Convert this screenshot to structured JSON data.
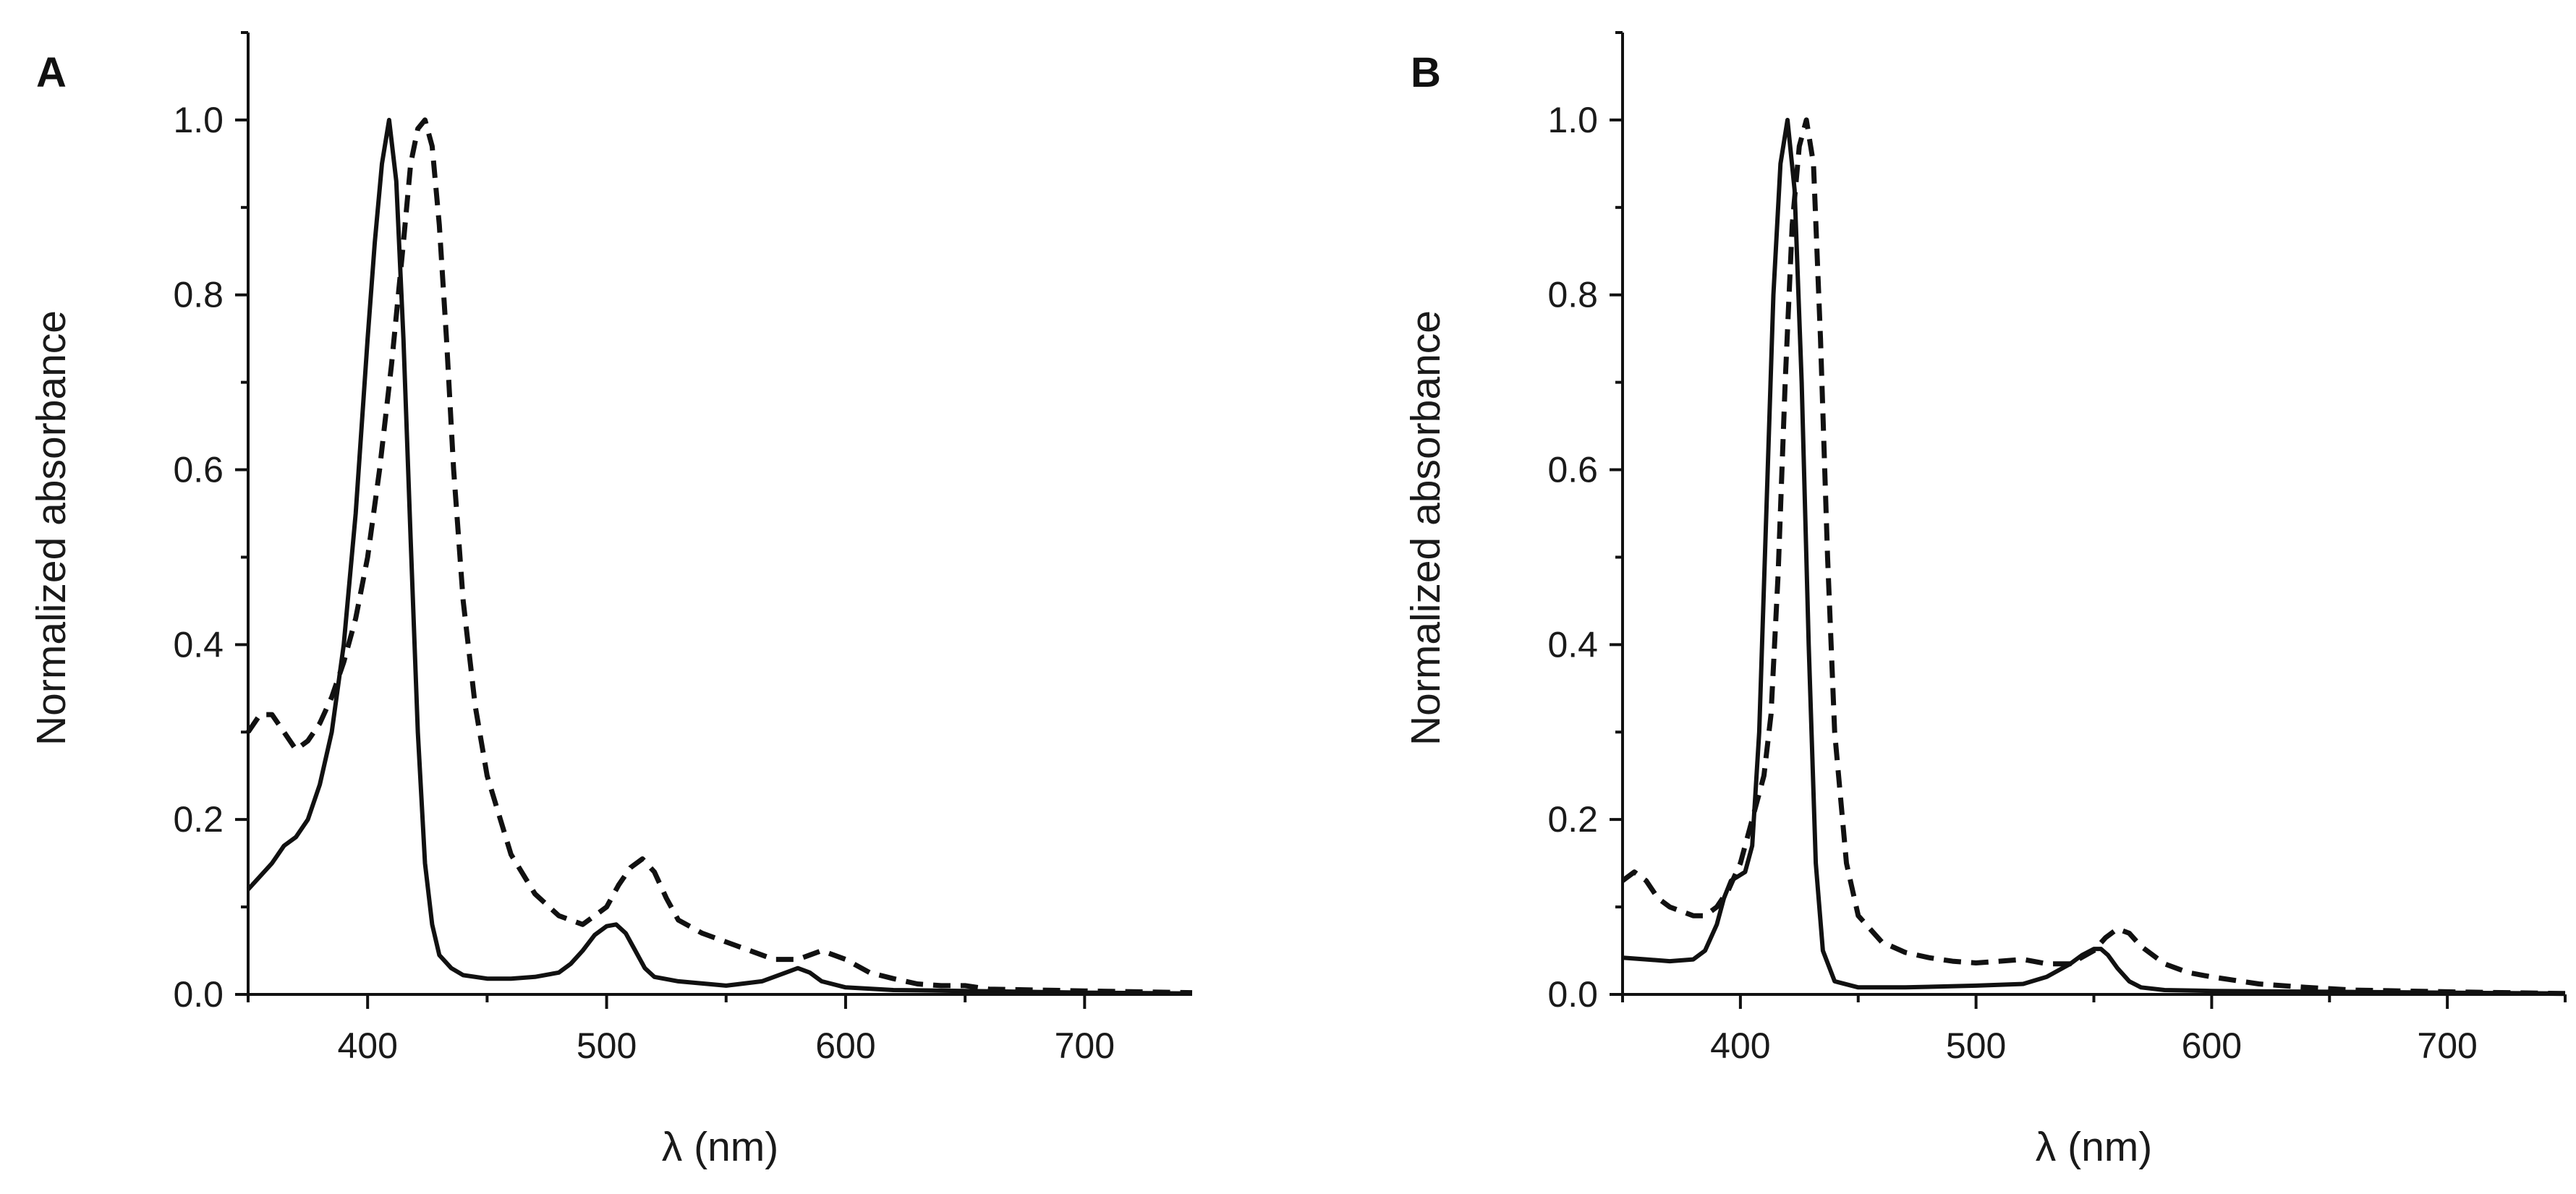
{
  "chart_data": [
    {
      "type": "line",
      "panel_label": "A",
      "xlabel": "λ (nm)",
      "ylabel": "Normalized absorbance",
      "xlim": [
        350,
        745
      ],
      "ylim": [
        0.0,
        1.1
      ],
      "x_ticks": [
        400,
        500,
        600,
        700
      ],
      "x_tick_labels": [
        "400",
        "500",
        "600",
        "700"
      ],
      "y_ticks": [
        0.0,
        0.2,
        0.4,
        0.6,
        0.8,
        1.0
      ],
      "y_tick_labels": [
        "0.0",
        "0.2",
        "0.4",
        "0.6",
        "0.8",
        "1.0"
      ],
      "grid": false,
      "series": [
        {
          "name": "solid",
          "style": "solid",
          "color": "#111111",
          "x": [
            350,
            360,
            365,
            370,
            375,
            380,
            385,
            390,
            395,
            400,
            403,
            406,
            409,
            412,
            415,
            418,
            421,
            424,
            427,
            430,
            435,
            440,
            450,
            460,
            470,
            480,
            485,
            490,
            495,
            500,
            504,
            508,
            512,
            516,
            520,
            530,
            550,
            565,
            575,
            580,
            585,
            590,
            600,
            620,
            650,
            700,
            745
          ],
          "y": [
            0.12,
            0.15,
            0.17,
            0.18,
            0.2,
            0.24,
            0.3,
            0.4,
            0.55,
            0.75,
            0.86,
            0.95,
            1.0,
            0.93,
            0.75,
            0.52,
            0.3,
            0.15,
            0.08,
            0.045,
            0.03,
            0.022,
            0.018,
            0.018,
            0.02,
            0.025,
            0.035,
            0.05,
            0.068,
            0.078,
            0.08,
            0.07,
            0.05,
            0.03,
            0.02,
            0.015,
            0.01,
            0.015,
            0.025,
            0.03,
            0.025,
            0.015,
            0.008,
            0.005,
            0.004,
            0.002,
            0.001
          ]
        },
        {
          "name": "dashed",
          "style": "dashed",
          "color": "#111111",
          "x": [
            350,
            355,
            360,
            365,
            370,
            375,
            380,
            385,
            390,
            395,
            400,
            405,
            410,
            415,
            418,
            421,
            424,
            427,
            430,
            433,
            436,
            440,
            445,
            450,
            460,
            470,
            480,
            490,
            500,
            505,
            510,
            515,
            520,
            525,
            530,
            540,
            550,
            560,
            570,
            580,
            585,
            590,
            600,
            610,
            620,
            630,
            640,
            650,
            660,
            700,
            745
          ],
          "y": [
            0.3,
            0.32,
            0.32,
            0.3,
            0.28,
            0.29,
            0.31,
            0.34,
            0.38,
            0.43,
            0.5,
            0.6,
            0.72,
            0.86,
            0.95,
            0.99,
            1.0,
            0.97,
            0.88,
            0.75,
            0.6,
            0.45,
            0.33,
            0.25,
            0.16,
            0.115,
            0.09,
            0.08,
            0.1,
            0.125,
            0.145,
            0.155,
            0.14,
            0.11,
            0.085,
            0.07,
            0.06,
            0.05,
            0.04,
            0.04,
            0.045,
            0.05,
            0.04,
            0.025,
            0.018,
            0.012,
            0.01,
            0.01,
            0.006,
            0.004,
            0.002
          ]
        }
      ]
    },
    {
      "type": "line",
      "panel_label": "B",
      "xlabel": "λ (nm)",
      "ylabel": "Normalized absorbance",
      "xlim": [
        350,
        750
      ],
      "ylim": [
        0.0,
        1.1
      ],
      "x_ticks": [
        400,
        500,
        600,
        700
      ],
      "x_tick_labels": [
        "400",
        "500",
        "600",
        "700"
      ],
      "y_ticks": [
        0.0,
        0.2,
        0.4,
        0.6,
        0.8,
        1.0
      ],
      "y_tick_labels": [
        "0.0",
        "0.2",
        "0.4",
        "0.6",
        "0.8",
        "1.0"
      ],
      "grid": false,
      "series": [
        {
          "name": "solid",
          "style": "solid",
          "color": "#111111",
          "x": [
            350,
            360,
            370,
            380,
            385,
            390,
            393,
            396,
            399,
            402,
            405,
            408,
            411,
            414,
            417,
            420,
            423,
            426,
            429,
            432,
            435,
            440,
            450,
            470,
            500,
            520,
            530,
            540,
            545,
            550,
            553,
            556,
            560,
            565,
            570,
            580,
            600,
            650,
            700,
            750
          ],
          "y": [
            0.042,
            0.04,
            0.038,
            0.04,
            0.05,
            0.08,
            0.11,
            0.13,
            0.135,
            0.14,
            0.17,
            0.3,
            0.55,
            0.8,
            0.95,
            1.0,
            0.92,
            0.7,
            0.4,
            0.15,
            0.05,
            0.015,
            0.008,
            0.008,
            0.01,
            0.012,
            0.02,
            0.035,
            0.045,
            0.052,
            0.052,
            0.045,
            0.03,
            0.015,
            0.008,
            0.005,
            0.004,
            0.003,
            0.002,
            0.001
          ]
        },
        {
          "name": "dashed",
          "style": "dashed",
          "color": "#111111",
          "x": [
            350,
            355,
            360,
            365,
            370,
            375,
            380,
            385,
            390,
            395,
            400,
            405,
            410,
            413,
            416,
            419,
            422,
            425,
            428,
            431,
            434,
            437,
            440,
            445,
            450,
            460,
            470,
            480,
            490,
            500,
            510,
            520,
            530,
            540,
            550,
            555,
            560,
            565,
            570,
            580,
            590,
            600,
            620,
            640,
            660,
            700,
            750
          ],
          "y": [
            0.13,
            0.14,
            0.13,
            0.11,
            0.1,
            0.095,
            0.09,
            0.09,
            0.1,
            0.12,
            0.15,
            0.2,
            0.25,
            0.32,
            0.48,
            0.7,
            0.88,
            0.97,
            1.0,
            0.95,
            0.75,
            0.5,
            0.3,
            0.15,
            0.09,
            0.06,
            0.048,
            0.042,
            0.038,
            0.036,
            0.038,
            0.04,
            0.035,
            0.035,
            0.05,
            0.065,
            0.075,
            0.07,
            0.055,
            0.035,
            0.025,
            0.02,
            0.012,
            0.008,
            0.005,
            0.003,
            0.001
          ]
        }
      ]
    }
  ]
}
